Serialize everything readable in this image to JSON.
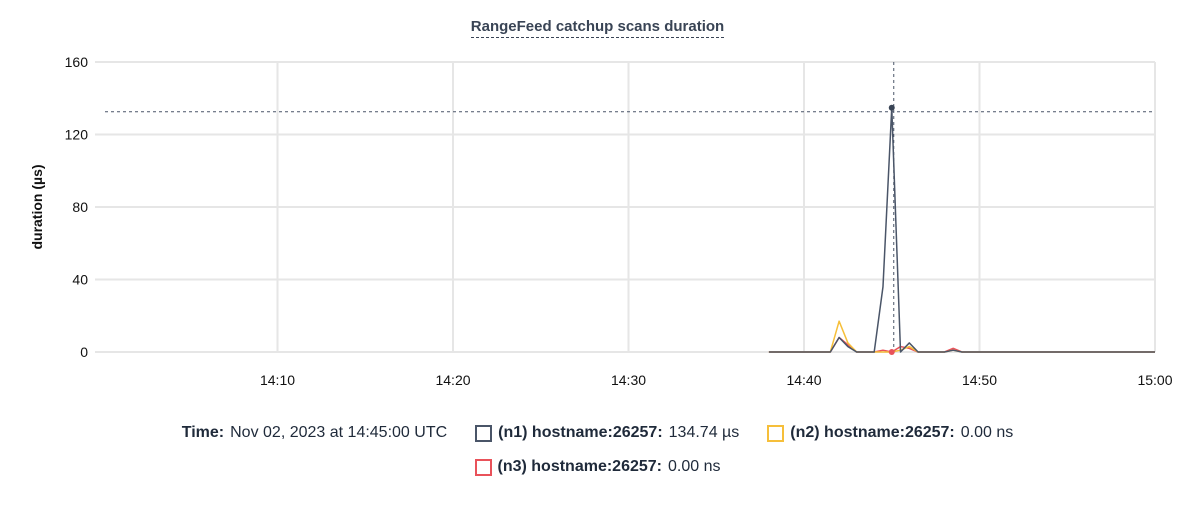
{
  "chart_data": {
    "type": "line",
    "title": "RangeFeed catchup scans duration",
    "xlabel": "",
    "ylabel": "duration (µs)",
    "ylim": [
      0,
      160
    ],
    "yticks": [
      0,
      40,
      80,
      120,
      160
    ],
    "xticks": [
      "14:10",
      "14:20",
      "14:30",
      "14:40",
      "14:50",
      "15:00"
    ],
    "xlim": [
      "13:59:36",
      "15:00:00"
    ],
    "grid": true,
    "x_start": "14:38:00",
    "x_step_seconds": 30,
    "series": [
      {
        "name": "(n1) hostname:26257",
        "color": "#4a5568",
        "values": [
          0,
          0,
          0,
          0,
          0,
          0,
          0,
          0,
          8,
          3,
          0,
          0,
          0,
          36,
          134.74,
          0,
          5,
          0,
          0,
          0,
          0,
          1,
          0,
          0,
          0,
          0,
          0,
          0,
          0,
          0,
          0,
          0,
          0,
          0,
          0,
          0,
          0,
          0,
          0,
          0,
          0,
          0,
          0,
          0,
          0
        ]
      },
      {
        "name": "(n2) hostname:26257",
        "color": "#f6bf3a",
        "values": [
          0,
          0,
          0,
          0,
          0,
          0,
          0,
          0,
          17,
          5,
          0,
          0,
          0,
          0,
          0,
          1,
          3,
          0,
          0,
          0,
          0,
          1,
          0,
          0,
          0,
          0,
          0,
          0,
          0,
          0,
          0,
          0,
          0,
          0,
          0,
          0,
          0,
          0,
          0,
          0,
          0,
          0,
          0,
          0,
          0
        ]
      },
      {
        "name": "(n3) hostname:26257",
        "color": "#e9525a",
        "values": [
          0,
          0,
          0,
          0,
          0,
          0,
          0,
          0,
          8,
          4,
          0,
          0,
          0,
          1,
          0,
          3,
          2,
          0,
          0,
          0,
          0,
          2,
          0,
          0,
          0,
          0,
          0,
          0,
          0,
          0,
          0,
          0,
          0,
          0,
          0,
          0,
          0,
          0,
          0,
          0,
          0,
          0,
          0,
          0,
          0
        ]
      }
    ],
    "hover": {
      "time": "14:45:00",
      "value": 134.74
    }
  },
  "legend": {
    "time_label": "Time:",
    "time_value": "Nov 02, 2023 at 14:45:00 UTC",
    "items": [
      {
        "name": "(n1) hostname:26257:",
        "value": "134.74 µs",
        "color": "#4a5568"
      },
      {
        "name": "(n2) hostname:26257:",
        "value": "0.00 ns",
        "color": "#f6bf3a"
      },
      {
        "name": "(n3) hostname:26257:",
        "value": "0.00 ns",
        "color": "#e9525a"
      }
    ]
  }
}
